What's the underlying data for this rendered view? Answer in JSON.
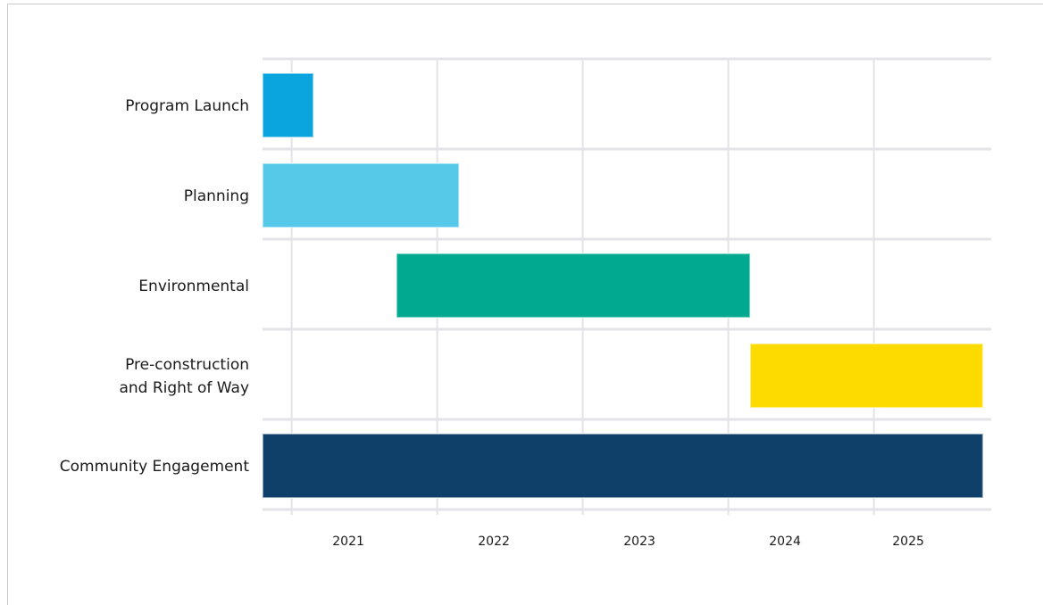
{
  "chart_data": {
    "type": "gantt",
    "title": "",
    "xlabel": "",
    "ylabel": "",
    "x_ticks": [
      "2021",
      "2022",
      "2023",
      "2024",
      "2025"
    ],
    "xlim": [
      2020.3,
      2025.3
    ],
    "grid": true,
    "tasks": [
      {
        "label_lines": [
          "Program Launch"
        ],
        "start": 2020.3,
        "end": 2020.65,
        "color": "#0aa5df"
      },
      {
        "label_lines": [
          "Planning"
        ],
        "start": 2020.3,
        "end": 2021.65,
        "color": "#56c8e8"
      },
      {
        "label_lines": [
          "Environmental"
        ],
        "start": 2021.22,
        "end": 2023.65,
        "color": "#00a98f"
      },
      {
        "label_lines": [
          "Pre-construction",
          "and Right of Way"
        ],
        "start": 2023.65,
        "end": 2025.25,
        "color": "#fedb00"
      },
      {
        "label_lines": [
          "Community Engagement"
        ],
        "start": 2020.3,
        "end": 2025.25,
        "color": "#0f4069"
      }
    ]
  },
  "colors": {
    "gridline": "#e3e3e8",
    "frame": "#c9c9c9"
  }
}
